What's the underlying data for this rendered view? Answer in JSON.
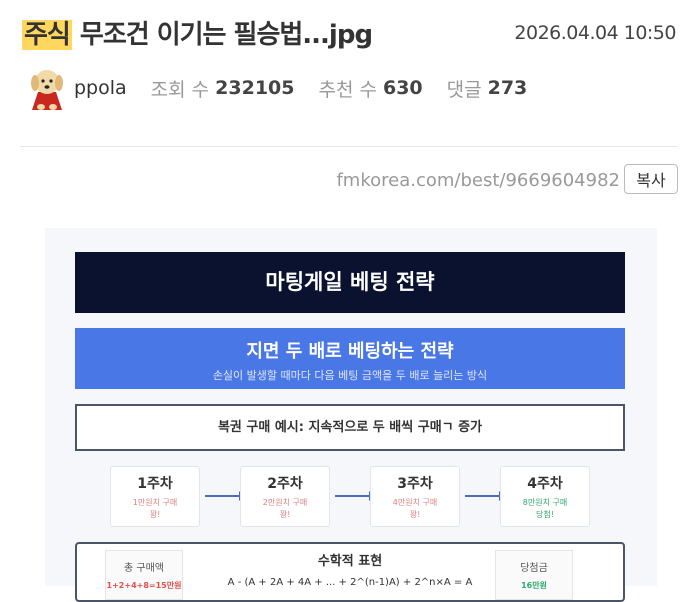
{
  "post": {
    "category": "주식",
    "title": "무조건 이기는 필승법...jpg",
    "date": "2026.04.04 10:50",
    "author": "ppola",
    "views_label": "조회 수",
    "views": "232105",
    "votes_label": "추천 수",
    "votes": "630",
    "comments_label": "댓글",
    "comments": "273",
    "url": "fmkorea.com/best/9669604982",
    "copy_label": "복사"
  },
  "image": {
    "title": "마팅게일 베팅 전략",
    "banner_title": "지면 두 배로 베팅하는 전략",
    "banner_sub": "손실이 발생할 때마다 다음 베팅 금액을 두 배로 늘리는 방식",
    "example": "복권 구매 예시: 지속적으로 두 배씩 구매ㄱ 증가",
    "steps": [
      {
        "label": "1주차",
        "desc": "1만원치 구매",
        "result": "꽝!"
      },
      {
        "label": "2주차",
        "desc": "2만원치 구매",
        "result": "꽝!"
      },
      {
        "label": "3주차",
        "desc": "4만원치 구매",
        "result": "꽝!"
      },
      {
        "label": "4주차",
        "desc": "8만원치 구매",
        "result": "당첨!"
      }
    ],
    "math_title": "수학적 표현",
    "formula": "A - (A + 2A + 4A + ... + 2^(n-1)A) + 2^n×A = A",
    "total_label": "총 구매액",
    "total_value": "1+2+4+8=15만원",
    "prize_label": "당첨금",
    "prize_value": "16만원",
    "colors": {
      "title_bg": "#0b1230",
      "banner_bg": "#4a77e6",
      "loss": "#e08080",
      "win": "#2ea86b"
    }
  }
}
